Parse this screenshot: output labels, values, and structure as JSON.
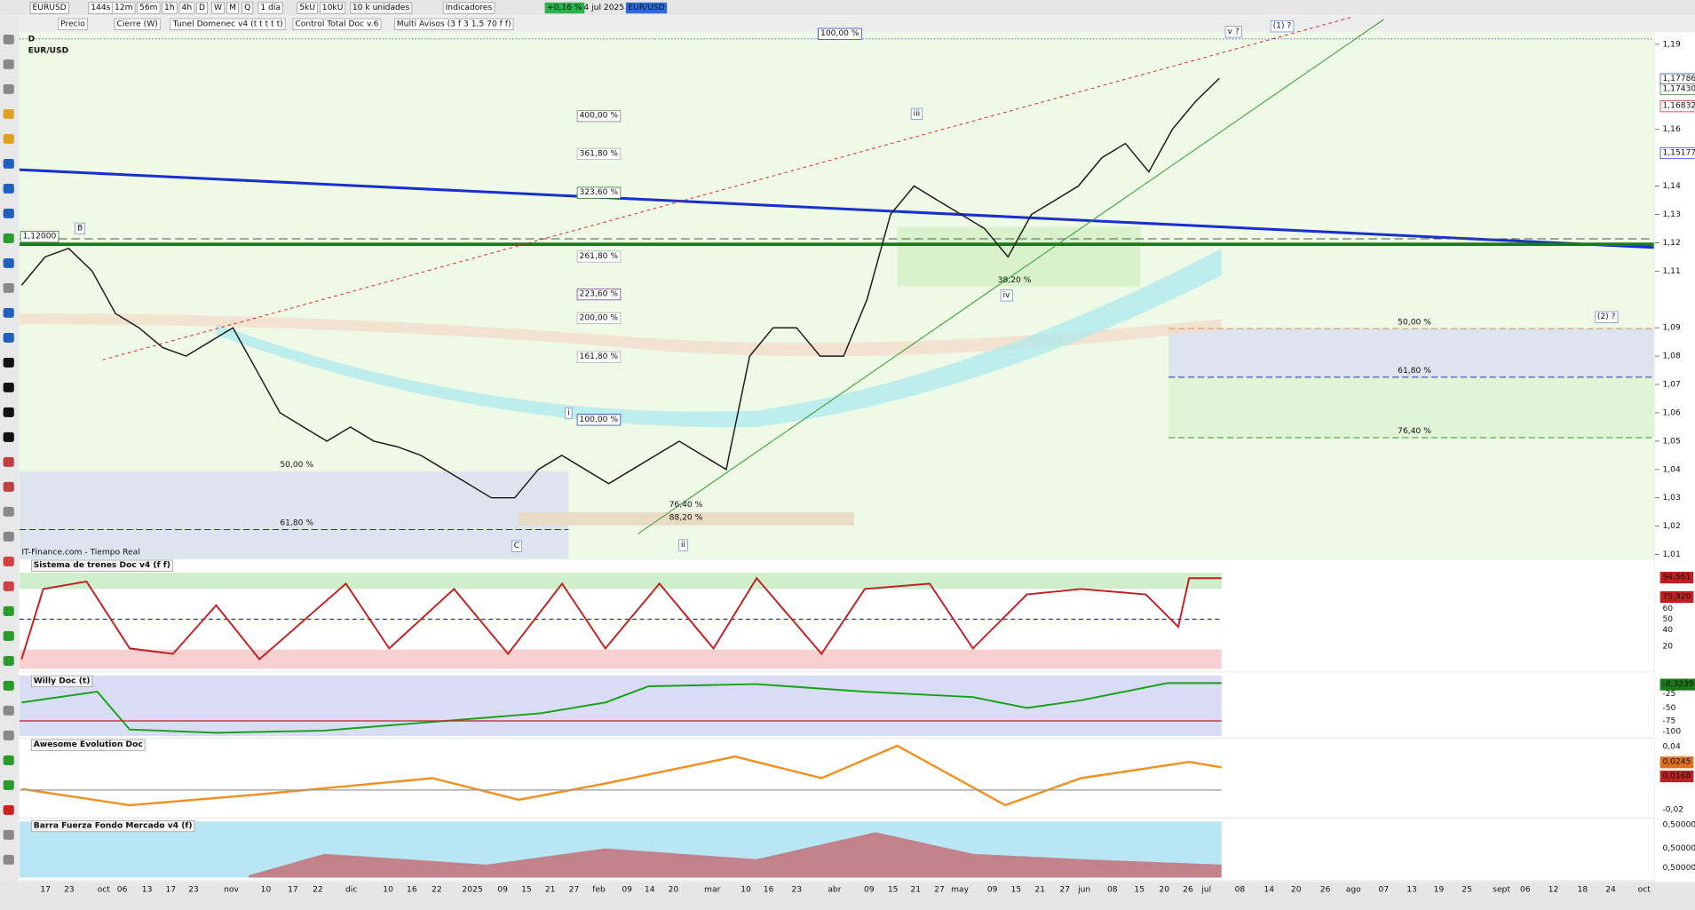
{
  "toolbar": {
    "symbol": "EURUSD",
    "buttons": [
      "144s",
      "12m",
      "56m",
      "1h",
      "4h",
      "D",
      "W",
      "M",
      "Q",
      "1 día",
      "5kU",
      "10kU",
      "10 k unidades",
      "Indicadores"
    ],
    "change": "+0,16 %",
    "date": "4 jul 2025",
    "pair": "EUR/USD"
  },
  "chart_toolbar": {
    "items": [
      "Precio",
      "Cierre (W)",
      "Tunel Domenec v4 (t t t t t)",
      "Control Total Doc v.6",
      "Multi Avisos (3 f 3 1,5 70 f f)"
    ]
  },
  "main_chart": {
    "period": "D",
    "instrument": "EUR/USD",
    "source": "IT-Finance.com - Tiempo Real",
    "ylim": [
      1.0085,
      1.1942
    ],
    "yticks": [
      {
        "value": 1.19,
        "label": "1,19"
      },
      {
        "value": 1.16,
        "label": "1,16"
      },
      {
        "value": 1.14,
        "label": "1,14"
      },
      {
        "value": 1.13,
        "label": "1,13"
      },
      {
        "value": 1.12,
        "label": "1,12"
      },
      {
        "value": 1.11,
        "label": "1,11"
      },
      {
        "value": 1.09,
        "label": "1,09"
      },
      {
        "value": 1.08,
        "label": "1,08"
      },
      {
        "value": 1.07,
        "label": "1,07"
      },
      {
        "value": 1.06,
        "label": "1,06"
      },
      {
        "value": 1.05,
        "label": "1,05"
      },
      {
        "value": 1.04,
        "label": "1,04"
      },
      {
        "value": 1.03,
        "label": "1,03"
      },
      {
        "value": 1.02,
        "label": "1,02"
      },
      {
        "value": 1.01,
        "label": "1,01"
      }
    ],
    "price_labels": [
      {
        "value": 1.17786,
        "label": "1,17786"
      },
      {
        "value": 1.1743,
        "label": "1,17430"
      },
      {
        "value": 1.16832,
        "label": "1,16832"
      },
      {
        "value": 1.15177,
        "label": "1,15177"
      }
    ],
    "level_label": {
      "value": 1.12,
      "label": "1,12000"
    },
    "price": {
      "name": "EURUSD",
      "values": [
        1.105,
        1.115,
        1.118,
        1.11,
        1.095,
        1.09,
        1.083,
        1.08,
        1.085,
        1.09,
        1.075,
        1.06,
        1.055,
        1.05,
        1.055,
        1.05,
        1.048,
        1.045,
        1.04,
        1.035,
        1.03,
        1.03,
        1.04,
        1.045,
        1.04,
        1.035,
        1.04,
        1.045,
        1.05,
        1.045,
        1.04,
        1.08,
        1.09,
        1.09,
        1.08,
        1.08,
        1.1,
        1.13,
        1.14,
        1.135,
        1.13,
        1.125,
        1.115,
        1.13,
        1.135,
        1.14,
        1.15,
        1.155,
        1.145,
        1.16,
        1.17,
        1.178
      ]
    },
    "fib_labels": [
      "400,00 %",
      "361,80 %",
      "323,60 %",
      "261,80 %",
      "223,60 %",
      "200,00 %",
      "161,80 %",
      "100,00 %",
      "100,00 %",
      "50,00 %",
      "61,80 %",
      "76,40 %",
      "88,20 %",
      "38,20 %",
      "50,00 %",
      "61,80 %",
      "76,40 %"
    ],
    "wave_labels": [
      "B",
      "C",
      "i",
      "ii",
      "iii",
      "iv",
      "v ?",
      "(1) ?",
      "(2) ?"
    ],
    "x_labels": [
      "17",
      "23",
      "oct",
      "06",
      "13",
      "17",
      "23",
      "nov",
      "10",
      "17",
      "22",
      "dic",
      "10",
      "16",
      "22",
      "2025",
      "09",
      "15",
      "21",
      "27",
      "feb",
      "09",
      "14",
      "20",
      "mar",
      "10",
      "16",
      "23",
      "abr",
      "09",
      "15",
      "21",
      "27",
      "may",
      "09",
      "15",
      "21",
      "27",
      "jun",
      "08",
      "15",
      "20",
      "26",
      "jul",
      "08",
      "14",
      "20",
      "26",
      "ago",
      "07",
      "13",
      "19",
      "25",
      "sept",
      "06",
      "12",
      "18",
      "24",
      "oct"
    ]
  },
  "panels": [
    {
      "title": "Sistema de trenes Doc v4 (f f)",
      "axis": [
        "94,561",
        "75,920",
        "60",
        "50",
        "40",
        "20"
      ]
    },
    {
      "title": "Willy Doc (t)",
      "axis": [
        "-8,3239",
        "-25",
        "-50",
        "-75",
        "-100"
      ]
    },
    {
      "title": "Awesome Evolution Doc",
      "axis": [
        "0,04",
        "0,0245",
        "0,0168",
        "-0,02"
      ]
    },
    {
      "title": "Barra Fuerza Fondo Mercado v4 (f)",
      "axis": [
        "0,50000",
        "0,50000",
        "0,50000"
      ]
    }
  ]
}
